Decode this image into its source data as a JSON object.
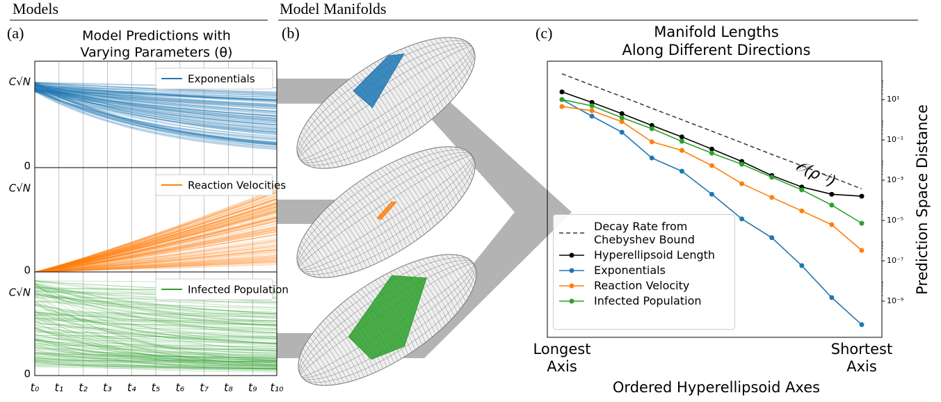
{
  "header": {
    "left": "Models",
    "right": "Model Manifolds"
  },
  "panel_labels": [
    "(a)",
    "(b)",
    "(c)"
  ],
  "models": {
    "title": "Model Predictions with",
    "title_line2": "Varying Parameters (θ)",
    "xticks": [
      "t₀",
      "t₁",
      "t₂",
      "t₃",
      "t₄",
      "t₅",
      "t₆",
      "t₇",
      "t₈",
      "t₉",
      "t₁₀"
    ],
    "panels": [
      {
        "name": "Exponentials",
        "color": "#1f77b4",
        "yticks": [
          "0",
          "C√N"
        ]
      },
      {
        "name": "Reaction Velocities",
        "color": "#ff7f0e",
        "yticks": [
          "0",
          "C√N"
        ]
      },
      {
        "name": "Infected Population",
        "color": "#2ca02c",
        "yticks": [
          "0",
          "C√N"
        ]
      }
    ]
  },
  "chart_data": {
    "type": "line",
    "title": "Manifold Lengths",
    "subtitle": "Along Different Directions",
    "x_label": "Ordered Hyperellipsoid Axes",
    "y_label": "Prediction Space Distance",
    "y_axis_side": "right",
    "log_y": true,
    "grid": false,
    "legend": "lower left",
    "annotation": "𝒪(ρ⁻ʲ)",
    "categories": [
      "Longest Axis",
      null,
      null,
      null,
      null,
      null,
      null,
      null,
      null,
      null,
      "Shortest Axis"
    ],
    "ylim": [
      1.6e-11,
      800
    ],
    "yticks": [
      {
        "value": 10,
        "label": "10¹"
      },
      {
        "value": 0.1,
        "label": "10⁻¹"
      },
      {
        "value": 0.001,
        "label": "10⁻³"
      },
      {
        "value": 1e-05,
        "label": "10⁻⁵"
      },
      {
        "value": 1e-07,
        "label": "10⁻⁷"
      },
      {
        "value": 1e-09,
        "label": "10⁻⁹"
      }
    ],
    "series": [
      {
        "name": "Decay Rate from Chebyshev Bound",
        "color": "#333333",
        "linestyle": "dashed",
        "markers": false,
        "values": [
          190,
          51,
          14,
          3.7,
          1.0,
          0.27,
          0.072,
          0.019,
          0.0052,
          0.0014,
          0.00037
        ]
      },
      {
        "name": "Hyperellipsoid Length",
        "color": "#000000",
        "linestyle": "solid",
        "markers": true,
        "values": [
          24,
          7.2,
          2,
          0.52,
          0.14,
          0.035,
          0.0085,
          0.0017,
          0.00046,
          0.0002,
          0.00016
        ]
      },
      {
        "name": "Exponentials",
        "color": "#1f77b4",
        "linestyle": "solid",
        "markers": true,
        "values": [
          10,
          1.5,
          0.24,
          0.0126,
          0.0028,
          0.0002,
          1.2e-05,
          1.4e-06,
          5.8e-08,
          1.5e-09,
          6.8e-11
        ]
      },
      {
        "name": "Reaction Velocity",
        "color": "#ff7f0e",
        "linestyle": "solid",
        "markers": true,
        "values": [
          4.5,
          2.8,
          0.8,
          0.08,
          0.03,
          0.0053,
          0.00067,
          0.00014,
          3e-05,
          6.2e-06,
          3.3e-07
        ]
      },
      {
        "name": "Infected Population",
        "color": "#2ca02c",
        "linestyle": "solid",
        "markers": true,
        "values": [
          10,
          4.9,
          1.26,
          0.36,
          0.085,
          0.022,
          0.0062,
          0.0014,
          0.00033,
          5.8e-05,
          7.3e-06
        ]
      }
    ]
  }
}
